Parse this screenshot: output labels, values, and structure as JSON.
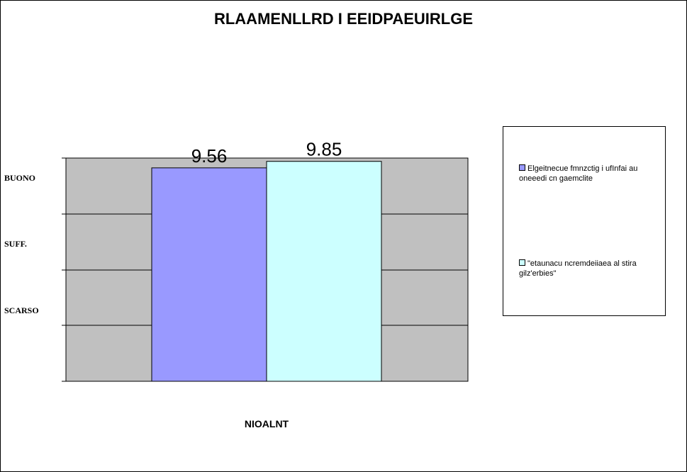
{
  "chart_data": {
    "type": "bar",
    "title": "RLAAMENLLRD I EEIDPAEUIRLGE",
    "xlabel": "NIOALNT",
    "categories": [
      "NIOALNT"
    ],
    "ytick_labels": [
      "BUONO",
      "SUFF.",
      "SCARSO"
    ],
    "ylim": [
      0,
      10
    ],
    "grid": true,
    "legend_position": "right",
    "series": [
      {
        "name": "Elgeitnecue fmnzctig i ufInfai au oneeedi cn gaemclite",
        "values": [
          9.56
        ],
        "color": "#9999ff",
        "value_label": "9.56"
      },
      {
        "name": "\"etaunacu ncremdeiiaea al stira gilz'erbies\"",
        "values": [
          9.85
        ],
        "color": "#ccffff",
        "value_label": "9.85"
      }
    ],
    "plot_background": "#c0c0c0"
  }
}
